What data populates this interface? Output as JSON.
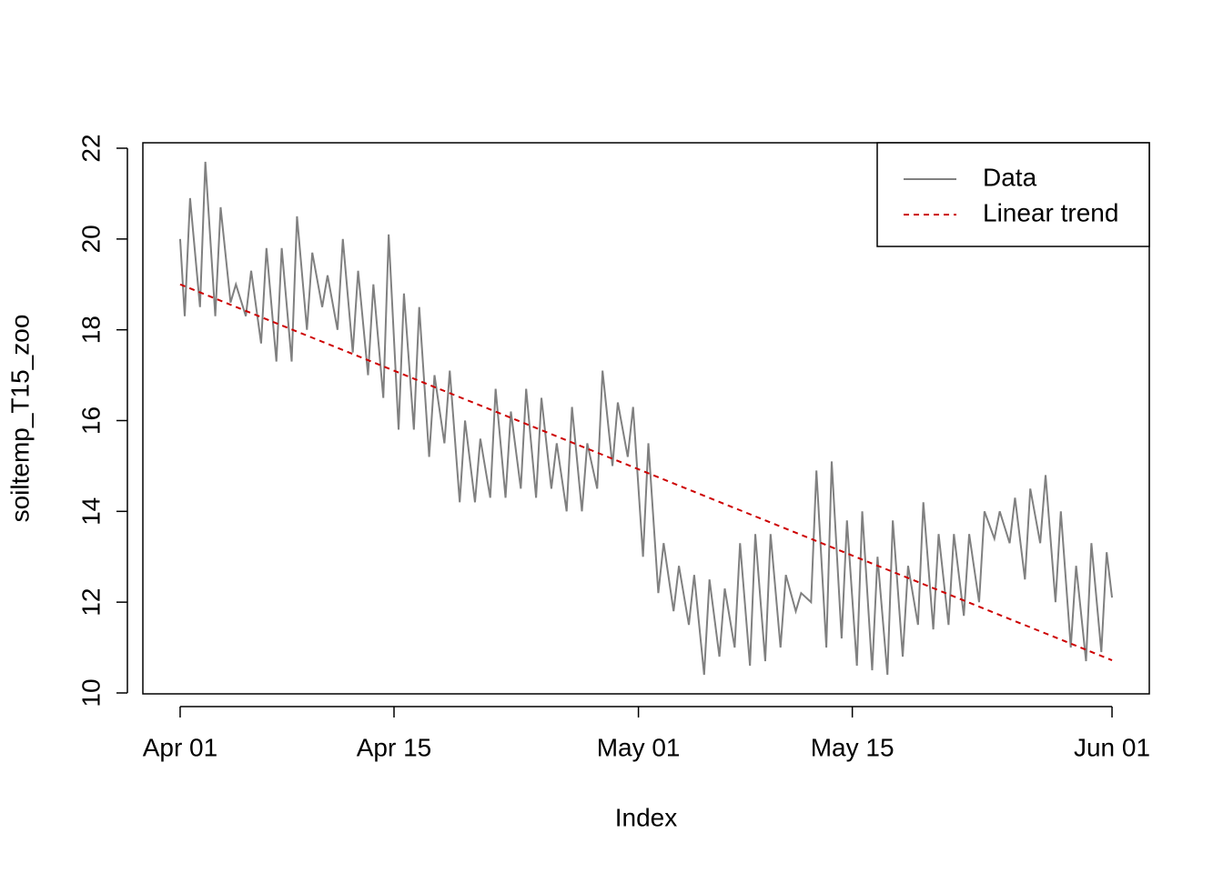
{
  "chart_data": {
    "type": "line",
    "x_label": "Index",
    "y_label": "soiltemp_T15_zoo",
    "xlim": [
      -2.44,
      63.44
    ],
    "ylim": [
      9.98,
      22.12
    ],
    "xticks": [
      {
        "value": 0,
        "label": "Apr 01"
      },
      {
        "value": 14,
        "label": "Apr 15"
      },
      {
        "value": 30,
        "label": "May 01"
      },
      {
        "value": 44,
        "label": "May 15"
      },
      {
        "value": 61,
        "label": "Jun 01"
      }
    ],
    "yticks": [
      10,
      12,
      14,
      16,
      18,
      20,
      22
    ],
    "legend_position": "topright",
    "series": [
      {
        "name": "Data",
        "color": "#808080",
        "dashed": false,
        "x": [
          0,
          0.3,
          0.65,
          1.3,
          1.65,
          2.3,
          2.65,
          3.3,
          3.65,
          4.3,
          4.65,
          5.3,
          5.65,
          6.3,
          6.65,
          7.3,
          7.65,
          8.3,
          8.65,
          9.3,
          9.65,
          10.3,
          10.65,
          11.3,
          11.65,
          12.3,
          12.65,
          13.3,
          13.65,
          14.3,
          14.65,
          15.3,
          15.65,
          16.3,
          16.65,
          17.3,
          17.65,
          18.3,
          18.65,
          19.3,
          19.65,
          20.3,
          20.65,
          21.3,
          21.65,
          22.3,
          22.65,
          23.3,
          23.65,
          24.3,
          24.65,
          25.3,
          25.65,
          26.3,
          26.65,
          27.3,
          27.65,
          28.3,
          28.65,
          29.3,
          29.65,
          30.3,
          30.65,
          31.3,
          31.65,
          32.3,
          32.65,
          33.3,
          33.65,
          34.3,
          34.65,
          35.3,
          35.65,
          36.3,
          36.65,
          37.3,
          37.65,
          38.3,
          38.65,
          39.3,
          39.65,
          40.3,
          40.65,
          41.3,
          41.65,
          42.3,
          42.65,
          43.3,
          43.65,
          44.3,
          44.65,
          45.3,
          45.65,
          46.3,
          46.65,
          47.3,
          47.65,
          48.3,
          48.65,
          49.3,
          49.65,
          50.3,
          50.65,
          51.3,
          51.65,
          52.3,
          52.65,
          53.3,
          53.65,
          54.3,
          54.65,
          55.3,
          55.65,
          56.3,
          56.65,
          57.3,
          57.65,
          58.3,
          58.65,
          59.3,
          59.65,
          60.3,
          60.65,
          61
        ],
        "values": [
          20.0,
          18.3,
          20.9,
          18.5,
          21.7,
          18.3,
          20.7,
          18.6,
          19.0,
          18.3,
          19.3,
          17.7,
          19.8,
          17.3,
          19.8,
          17.3,
          20.5,
          18.0,
          19.7,
          18.5,
          19.2,
          18.0,
          20.0,
          17.5,
          19.3,
          17.0,
          19.0,
          16.5,
          20.1,
          15.8,
          18.8,
          15.8,
          18.5,
          15.2,
          17.0,
          15.5,
          17.1,
          14.2,
          16.0,
          14.2,
          15.6,
          14.3,
          16.7,
          14.3,
          16.2,
          14.5,
          16.7,
          14.3,
          16.5,
          14.5,
          15.5,
          14.0,
          16.3,
          14.0,
          15.5,
          14.5,
          17.1,
          15.0,
          16.4,
          15.2,
          16.3,
          13.0,
          15.5,
          12.2,
          13.3,
          11.8,
          12.8,
          11.5,
          12.6,
          10.4,
          12.5,
          10.8,
          12.3,
          11.0,
          13.3,
          10.6,
          13.5,
          10.7,
          13.5,
          11.0,
          12.6,
          11.8,
          12.2,
          12.0,
          14.9,
          11.0,
          15.1,
          11.2,
          13.8,
          10.6,
          14.0,
          10.5,
          13.0,
          10.4,
          13.8,
          10.8,
          12.8,
          11.5,
          14.2,
          11.4,
          13.5,
          11.5,
          13.5,
          11.7,
          13.5,
          12.0,
          14.0,
          13.4,
          14.0,
          13.3,
          14.3,
          12.5,
          14.5,
          13.3,
          14.8,
          12.0,
          14.0,
          11.0,
          12.8,
          10.7,
          13.3,
          10.9,
          13.1,
          12.1
        ]
      },
      {
        "name": "Linear trend",
        "color": "#cd0000",
        "dashed": true,
        "x": [
          0,
          61
        ],
        "values": [
          19.0,
          10.72
        ]
      }
    ]
  }
}
